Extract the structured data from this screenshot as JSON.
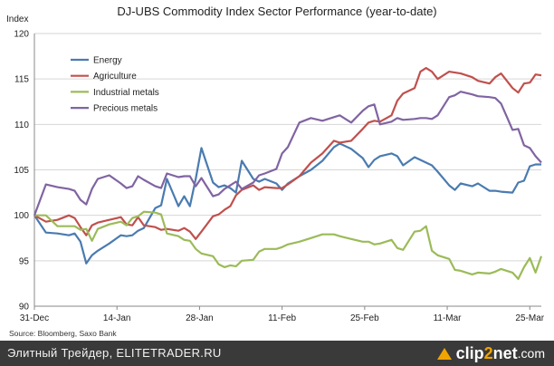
{
  "chart_data": {
    "type": "line",
    "title": "DJ-UBS Commodity Index Sector Performance (year-to-date)",
    "ylabel": "Index",
    "xlabel": "",
    "ylim": [
      90,
      120
    ],
    "yticks": [
      90,
      95,
      100,
      105,
      110,
      115,
      120
    ],
    "xtick_labels": [
      "31-Dec",
      "14-Jan",
      "28-Jan",
      "11-Feb",
      "25-Feb",
      "11-Mar",
      "25-Mar"
    ],
    "source": "Source: Bloomberg, Saxo Bank",
    "grid": true,
    "legend_position": "top-left",
    "x": [
      0,
      2,
      4,
      6,
      7,
      8,
      9,
      10,
      11,
      13,
      15,
      16,
      17,
      18,
      19,
      21,
      22,
      23,
      25,
      26,
      27,
      28,
      29,
      31,
      32,
      33,
      34,
      35,
      36,
      38,
      39,
      40,
      42,
      43,
      44,
      46,
      48,
      50,
      52,
      53,
      55,
      57,
      58,
      59,
      60,
      62,
      63,
      64,
      66,
      67,
      68,
      69,
      70,
      72,
      73,
      74,
      76,
      77,
      79,
      80,
      81,
      83,
      84,
      85,
      86,
      87,
      88
    ],
    "series": [
      {
        "name": "Energy",
        "color": "#4a7bb0",
        "values": [
          100,
          98.1,
          98,
          97.8,
          98,
          97.1,
          94.7,
          95.6,
          96.1,
          96.9,
          97.8,
          97.7,
          97.8,
          98.3,
          98.6,
          100.8,
          101.1,
          104,
          101,
          102.1,
          101,
          104,
          107.4,
          103.6,
          103.1,
          103.3,
          103,
          102.5,
          106,
          104,
          103.7,
          104,
          103.5,
          102.8,
          103.5,
          104.3,
          105,
          106,
          107.5,
          107.9,
          107.3,
          106.3,
          105.3,
          106.1,
          106.5,
          106.8,
          106.5,
          105.5,
          106.4,
          106.1,
          105.8,
          105.5,
          104.8,
          103.3,
          102.8,
          103.5,
          103.2,
          103.5,
          102.7,
          102.7,
          102.6,
          102.5,
          103.6,
          103.8,
          105.4,
          105.6,
          105.6
        ]
      },
      {
        "name": "Agriculture",
        "color": "#c0504d",
        "values": [
          100,
          99.3,
          99.5,
          100,
          99.7,
          98.7,
          97.8,
          98.9,
          99.2,
          99.5,
          99.8,
          99,
          98.9,
          99.8,
          98.9,
          98.7,
          98.4,
          98.5,
          98.3,
          98.6,
          98.2,
          97.4,
          98.2,
          99.9,
          100.1,
          100.6,
          101,
          102.2,
          102.8,
          103.3,
          102.8,
          103.1,
          103,
          103,
          103.4,
          104.3,
          105.8,
          106.8,
          108.2,
          108,
          108.2,
          109.5,
          110.2,
          110.4,
          110.3,
          111,
          112.6,
          113.4,
          114,
          115.8,
          116.2,
          115.8,
          115,
          115.8,
          115.7,
          115.6,
          115.2,
          114.8,
          114.5,
          115.2,
          115.6,
          114,
          113.5,
          114.5,
          114.6,
          115.5,
          115.4
        ]
      },
      {
        "name": "Industrial metals",
        "color": "#9bbb59",
        "values": [
          100,
          100,
          98.8,
          98.8,
          98.8,
          98.4,
          98.5,
          97.2,
          98.5,
          99,
          99.3,
          98.9,
          99.7,
          99.9,
          100.4,
          100.3,
          100.1,
          98,
          97.7,
          97.3,
          97.2,
          96.3,
          95.8,
          95.5,
          94.6,
          94.3,
          94.5,
          94.4,
          95,
          95.1,
          96,
          96.3,
          96.3,
          96.5,
          96.8,
          97.1,
          97.5,
          97.9,
          97.9,
          97.7,
          97.4,
          97.1,
          97.1,
          96.8,
          96.9,
          97.3,
          96.4,
          96.2,
          98.2,
          98.3,
          98.8,
          96.1,
          95.6,
          95.2,
          94,
          93.9,
          93.5,
          93.7,
          93.6,
          93.8,
          94.1,
          93.7,
          93,
          94.3,
          95.3,
          93.7,
          95.5
        ]
      },
      {
        "name": "Precious metals",
        "color": "#8064a2",
        "values": [
          100,
          103.4,
          103.1,
          102.9,
          102.7,
          101.7,
          101.2,
          102.9,
          104,
          104.4,
          103.5,
          103,
          103.2,
          104.3,
          103.9,
          103.2,
          103,
          104.6,
          104.2,
          104.3,
          104.3,
          103.2,
          104.1,
          102.1,
          102.3,
          102.9,
          103.3,
          103.7,
          102.9,
          103.6,
          104.4,
          104.6,
          105.1,
          106.8,
          107.5,
          110.2,
          110.7,
          110.4,
          110.8,
          111,
          110.2,
          111.5,
          112,
          112.2,
          110,
          110.3,
          110.7,
          110.5,
          110.6,
          110.7,
          110.7,
          110.6,
          111,
          113,
          113.2,
          113.6,
          113.3,
          113.1,
          113,
          112.9,
          112.3,
          109.4,
          109.5,
          107.7,
          107.4,
          106.5,
          105.8
        ]
      }
    ]
  },
  "footer": {
    "left_text": "Элитный Трейдер, ELITETRADER.RU",
    "logo_prefix": "clip",
    "logo_two": "2",
    "logo_suffix": "net",
    "logo_tld": ".com"
  }
}
